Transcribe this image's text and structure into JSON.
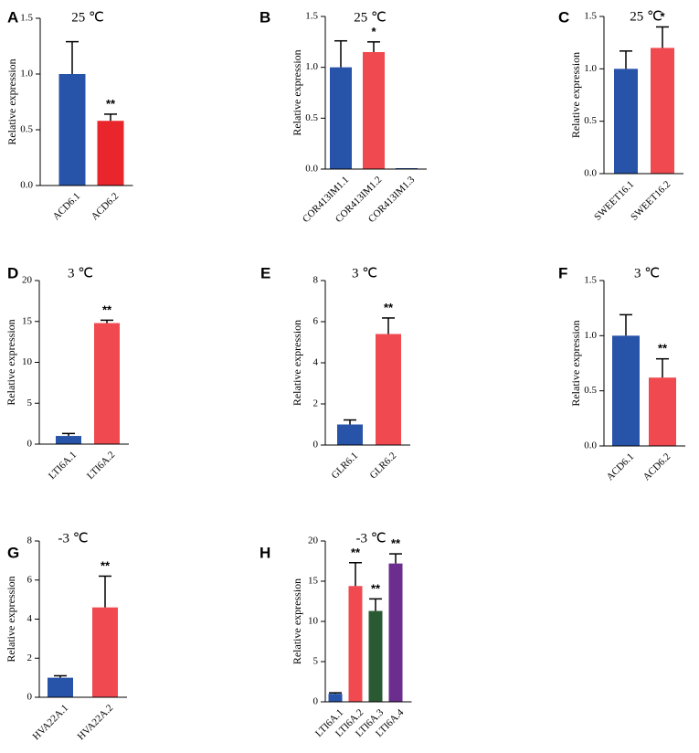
{
  "colors": {
    "blue": "#2753a8",
    "red": "#e8262b",
    "pink": "#f04a50",
    "green": "#2a5a32",
    "purple": "#6b2d8e"
  },
  "chart_data": [
    {
      "panel": "A",
      "type": "bar",
      "title": "25 ℃",
      "ylabel": "Relative expression",
      "ylim": [
        0,
        1.5
      ],
      "yticks": [
        "0.0",
        "0.5",
        "1.0",
        "1.5"
      ],
      "categories": [
        "ACD6.1",
        "ACD6.2"
      ],
      "values": [
        1.0,
        0.58
      ],
      "errors": [
        0.29,
        0.06
      ],
      "significance": [
        "",
        "**"
      ],
      "colors": [
        "#2753a8",
        "#e8262b"
      ]
    },
    {
      "panel": "B",
      "type": "bar",
      "title": "25 ℃",
      "ylabel": "Relative expression",
      "ylim": [
        0,
        1.5
      ],
      "yticks": [
        "0.0",
        "0.5",
        "1.0",
        "1.5"
      ],
      "categories": [
        "COR413IM1.1",
        "COR413IM1.2",
        "COR413IM1.3"
      ],
      "values": [
        1.0,
        1.15,
        0.005
      ],
      "errors": [
        0.26,
        0.1,
        0
      ],
      "significance": [
        "",
        "*",
        ""
      ],
      "colors": [
        "#2753a8",
        "#f04a50",
        "#2753a8"
      ]
    },
    {
      "panel": "C",
      "type": "bar",
      "title": "25 ℃",
      "ylabel": "Relative expression",
      "ylim": [
        0,
        1.5
      ],
      "yticks": [
        "0.0",
        "0.5",
        "1.0",
        "1.5"
      ],
      "categories": [
        "SWEET16.1",
        "SWEET16.2"
      ],
      "values": [
        1.0,
        1.2
      ],
      "errors": [
        0.17,
        0.2
      ],
      "significance": [
        "",
        "*"
      ],
      "colors": [
        "#2753a8",
        "#f04a50"
      ]
    },
    {
      "panel": "D",
      "type": "bar",
      "title": "3 ℃",
      "ylabel": "Relative expression",
      "ylim": [
        0,
        20
      ],
      "yticks": [
        "0",
        "5",
        "10",
        "15",
        "20"
      ],
      "categories": [
        "LTI6A.1",
        "LTI6A.2"
      ],
      "values": [
        1.0,
        14.8
      ],
      "errors": [
        0.3,
        0.35
      ],
      "significance": [
        "",
        "**"
      ],
      "colors": [
        "#2753a8",
        "#f04a50"
      ]
    },
    {
      "panel": "E",
      "type": "bar",
      "title": "3 ℃",
      "ylabel": "Relative expression",
      "ylim": [
        0,
        8
      ],
      "yticks": [
        "0",
        "2",
        "4",
        "6",
        "8"
      ],
      "categories": [
        "GLR6.1",
        "GLR6.2"
      ],
      "values": [
        1.0,
        5.4
      ],
      "errors": [
        0.22,
        0.78
      ],
      "significance": [
        "",
        "**"
      ],
      "colors": [
        "#2753a8",
        "#f04a50"
      ]
    },
    {
      "panel": "F",
      "type": "bar",
      "title": "3 ℃",
      "ylabel": "Relative expression",
      "ylim": [
        0,
        1.5
      ],
      "yticks": [
        "0.0",
        "0.5",
        "1.0",
        "1.5"
      ],
      "categories": [
        "ACD6.1",
        "ACD6.2"
      ],
      "values": [
        1.0,
        0.62
      ],
      "errors": [
        0.19,
        0.17
      ],
      "significance": [
        "",
        "**"
      ],
      "colors": [
        "#2753a8",
        "#f04a50"
      ]
    },
    {
      "panel": "G",
      "type": "bar",
      "title": "-3 ℃",
      "ylabel": "Relative expression",
      "ylim": [
        0,
        8
      ],
      "yticks": [
        "0",
        "2",
        "4",
        "6",
        "8"
      ],
      "categories": [
        "HVA22A.1",
        "HVA22A.2"
      ],
      "values": [
        1.0,
        4.6
      ],
      "errors": [
        0.1,
        1.6
      ],
      "significance": [
        "",
        "**"
      ],
      "colors": [
        "#2753a8",
        "#f04a50"
      ]
    },
    {
      "panel": "H",
      "type": "bar",
      "title": "-3 ℃",
      "ylabel": "Relative expression",
      "ylim": [
        0,
        20
      ],
      "yticks": [
        "0",
        "5",
        "10",
        "15",
        "20"
      ],
      "categories": [
        "LTI6A.1",
        "LTI6A.2",
        "LTI6A.3",
        "LTI6A.4"
      ],
      "values": [
        1.0,
        14.4,
        11.3,
        17.2
      ],
      "errors": [
        0.12,
        2.9,
        1.5,
        1.2
      ],
      "significance": [
        "",
        "**",
        "**",
        "**"
      ],
      "colors": [
        "#2753a8",
        "#f04a50",
        "#2a5a32",
        "#6b2d8e"
      ]
    }
  ]
}
